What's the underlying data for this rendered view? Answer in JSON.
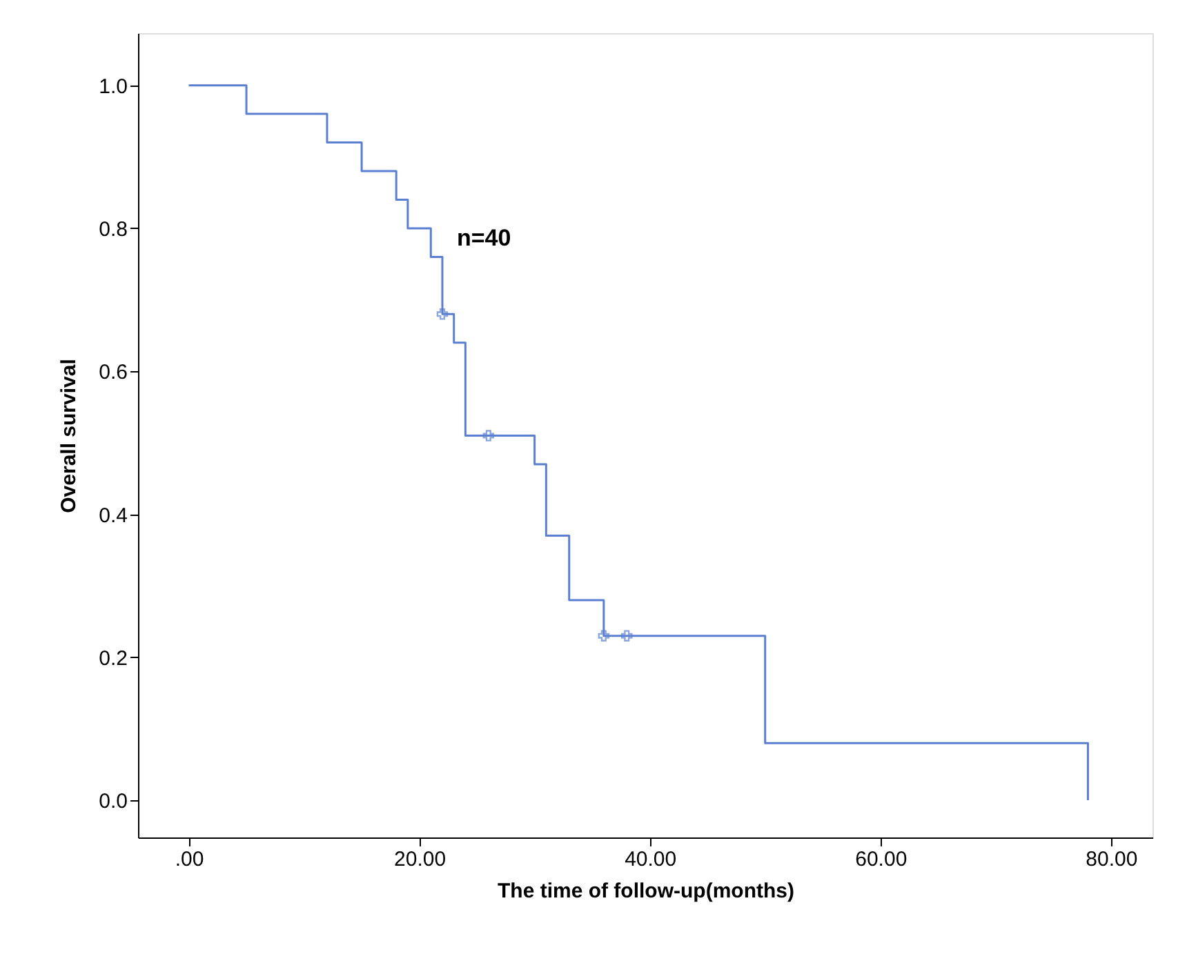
{
  "chart_data": {
    "type": "step",
    "xlabel": "The time of follow-up(months)",
    "ylabel": "Overall survival",
    "xlim": [
      -4.4,
      83.6
    ],
    "ylim": [
      -0.052,
      1.073
    ],
    "xticks": [
      {
        "value": 0,
        "label": ".00"
      },
      {
        "value": 20,
        "label": "20.00"
      },
      {
        "value": 40,
        "label": "40.00"
      },
      {
        "value": 60,
        "label": "60.00"
      },
      {
        "value": 80,
        "label": "80.00"
      }
    ],
    "yticks": [
      {
        "value": 0,
        "label": "0.0"
      },
      {
        "value": 0.2,
        "label": "0.2"
      },
      {
        "value": 0.4,
        "label": "0.4"
      },
      {
        "value": 0.6,
        "label": "0.6"
      },
      {
        "value": 0.8,
        "label": "0.8"
      },
      {
        "value": 1,
        "label": "1.0"
      }
    ],
    "grid": false,
    "series": [
      {
        "color": "#5b7fd0",
        "marker": "none",
        "x": [
          0,
          5,
          12,
          15,
          18,
          19,
          21,
          22,
          23,
          24,
          30,
          31,
          33,
          36,
          50,
          78
        ],
        "values": [
          1,
          0.96,
          0.92,
          0.88,
          0.84,
          0.8,
          0.76,
          0.68,
          0.64,
          0.51,
          0.47,
          0.37,
          0.28,
          0.23,
          0.08,
          0
        ]
      },
      {
        "type": "scatter",
        "color": "#5b7fd0",
        "marker": "cross",
        "x": [
          22,
          26,
          36,
          38
        ],
        "values": [
          0.68,
          0.51,
          0.23,
          0.23
        ]
      }
    ],
    "annotations": [
      "n=40"
    ]
  }
}
